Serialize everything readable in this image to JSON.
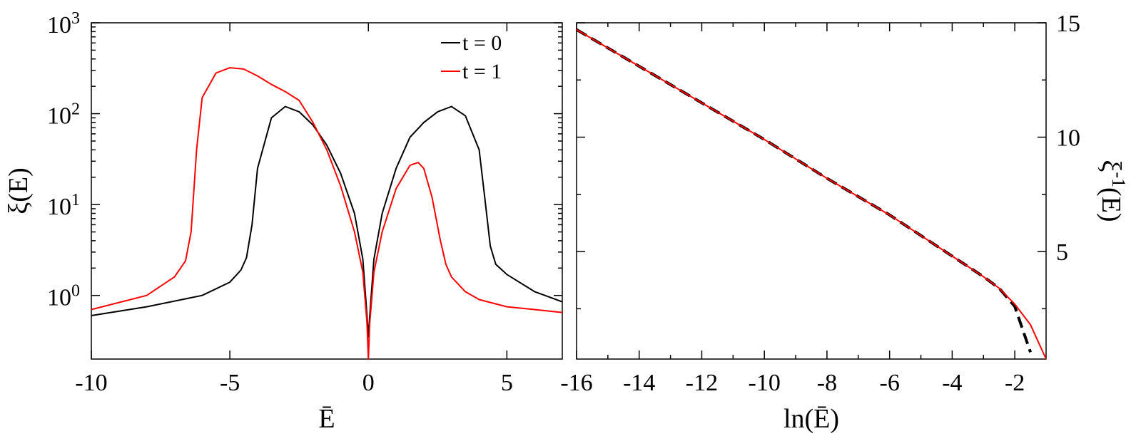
{
  "colors": {
    "t0": "#000000",
    "t1": "#ff0000"
  },
  "chart_data": [
    {
      "type": "line",
      "scale_y": "log",
      "xlabel": "Ē",
      "ylabel": "ξ(E)",
      "xlim": [
        -10,
        7
      ],
      "ylim_log10": [
        -0.7,
        3
      ],
      "x_ticks": [
        -10,
        -5,
        0,
        5
      ],
      "x_tick_labels": [
        "-10",
        "-5",
        "0",
        "5"
      ],
      "y_ticks": [
        {
          "exp": 0,
          "label": "10",
          "sup": "0"
        },
        {
          "exp": 1,
          "label": "10",
          "sup": "1"
        },
        {
          "exp": 2,
          "label": "10",
          "sup": "2"
        },
        {
          "exp": 3,
          "label": "10",
          "sup": "3"
        }
      ],
      "legend_placement": "top-right",
      "series": [
        {
          "name": "t = 0",
          "color": "#000000",
          "x": [
            -10,
            -8,
            -6,
            -5,
            -4.6,
            -4.4,
            -4.2,
            -4.0,
            -3.5,
            -3.0,
            -2.5,
            -2.0,
            -1.5,
            -1.0,
            -0.5,
            -0.2,
            -0.05,
            0,
            0.05,
            0.2,
            0.5,
            1.0,
            1.5,
            2.0,
            2.5,
            3.0,
            3.5,
            4.0,
            4.2,
            4.4,
            4.6,
            5.0,
            6.0,
            7.0
          ],
          "y": [
            0.6,
            0.75,
            1.0,
            1.4,
            1.9,
            2.6,
            6,
            25,
            90,
            120,
            105,
            75,
            45,
            22,
            8,
            2.5,
            0.6,
            0.35,
            0.6,
            2.5,
            8,
            25,
            55,
            80,
            105,
            120,
            95,
            40,
            12,
            3.5,
            2.2,
            1.7,
            1.1,
            0.85
          ]
        },
        {
          "name": "t = 1",
          "color": "#ff0000",
          "x": [
            -10,
            -8,
            -7,
            -6.6,
            -6.4,
            -6.2,
            -6.0,
            -5.5,
            -5.0,
            -4.5,
            -4.0,
            -3.5,
            -3.0,
            -2.5,
            -2.0,
            -1.5,
            -1.0,
            -0.5,
            -0.2,
            -0.05,
            0,
            0.05,
            0.2,
            0.5,
            1.0,
            1.5,
            1.8,
            2.0,
            2.3,
            2.6,
            2.8,
            3.0,
            3.5,
            4.0,
            5.0,
            6.0,
            7.0
          ],
          "y": [
            0.7,
            1.0,
            1.6,
            2.4,
            5,
            40,
            150,
            280,
            320,
            310,
            260,
            210,
            175,
            140,
            80,
            40,
            16,
            5,
            1.8,
            0.5,
            0.2,
            0.5,
            1.8,
            5,
            15,
            27,
            29,
            25,
            12,
            4,
            2.2,
            1.6,
            1.1,
            0.9,
            0.75,
            0.7,
            0.65
          ]
        }
      ]
    },
    {
      "type": "line",
      "xlabel": "ln(Ē)",
      "ylabel": "ξ-1(E)",
      "xlim": [
        -16,
        -1
      ],
      "ylim": [
        0.3,
        15
      ],
      "axis_y_side": "right",
      "x_ticks": [
        -16,
        -14,
        -12,
        -10,
        -8,
        -6,
        -4,
        -2
      ],
      "x_tick_labels": [
        "-16",
        "-14",
        "-12",
        "-10",
        "-8",
        "-6",
        "-4",
        "-2"
      ],
      "y_ticks": [
        5,
        10,
        15
      ],
      "y_tick_labels": [
        "5",
        "10",
        "15"
      ],
      "series": [
        {
          "color": "#000000",
          "dashed": true,
          "x": [
            -16,
            -14,
            -12,
            -10,
            -8,
            -6,
            -4,
            -3,
            -2.5,
            -2,
            -1.5
          ],
          "y": [
            14.7,
            13.1,
            11.5,
            9.9,
            8.2,
            6.6,
            4.8,
            3.9,
            3.4,
            2.6,
            0.6
          ]
        },
        {
          "color": "#ff0000",
          "x": [
            -16,
            -14,
            -12,
            -10,
            -8,
            -6,
            -4,
            -3,
            -2.5,
            -2,
            -1.5,
            -1
          ],
          "y": [
            14.7,
            13.1,
            11.5,
            9.9,
            8.2,
            6.6,
            4.8,
            3.9,
            3.4,
            2.7,
            1.8,
            0.3
          ]
        }
      ]
    }
  ]
}
